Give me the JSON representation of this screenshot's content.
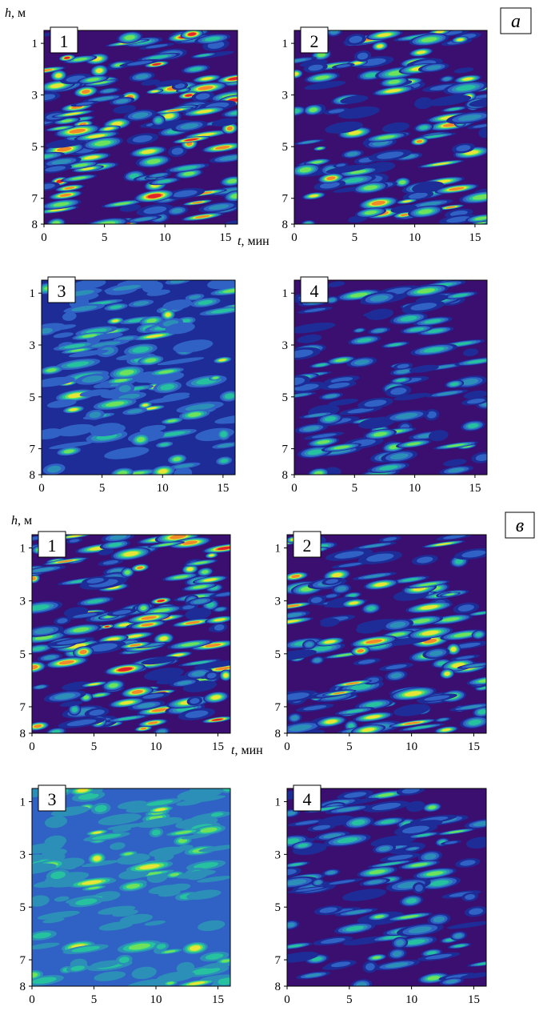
{
  "figure": {
    "y_label_h": "h",
    "y_label_unit": ", м",
    "x_label_t": "t",
    "x_label_unit": ", мин",
    "colors": {
      "levels": [
        "#3b0f6f",
        "#1d2c96",
        "#2f62c4",
        "#2c8fb8",
        "#26c2a0",
        "#6fe25c",
        "#e9e537",
        "#f08a2a",
        "#e2232a"
      ],
      "frame": "#000000",
      "badge_bg": "#ffffff"
    }
  },
  "chart_data": [
    {
      "group": "а",
      "panels": [
        {
          "id": "а-1",
          "label": "1",
          "type": "heatmap",
          "xlim": [
            0,
            16
          ],
          "ylim": [
            0.5,
            8
          ],
          "x_ticks": [
            0,
            5,
            10,
            15
          ],
          "y_ticks": [
            1,
            3,
            5,
            7,
            8
          ],
          "x_tick_labels": [
            "0",
            "5",
            "10",
            "15"
          ],
          "y_tick_labels": [
            "1",
            "3",
            "5",
            "7",
            "8"
          ],
          "intensity": 1.0,
          "background_level": 0,
          "seed": 11
        },
        {
          "id": "а-2",
          "label": "2",
          "type": "heatmap",
          "xlim": [
            0,
            16
          ],
          "ylim": [
            0.5,
            8
          ],
          "x_ticks": [
            0,
            5,
            10,
            15
          ],
          "y_ticks": [
            1,
            3,
            5,
            7,
            8
          ],
          "x_tick_labels": [
            "0",
            "5",
            "10",
            "15"
          ],
          "y_tick_labels": [
            "1",
            "3",
            "5",
            "7",
            "8"
          ],
          "intensity": 0.72,
          "background_level": 0,
          "seed": 23
        },
        {
          "id": "а-3",
          "label": "3",
          "type": "heatmap",
          "xlim": [
            0,
            16
          ],
          "ylim": [
            0.5,
            8
          ],
          "x_ticks": [
            0,
            5,
            10,
            15
          ],
          "y_ticks": [
            1,
            3,
            5,
            7,
            8
          ],
          "x_tick_labels": [
            "0",
            "5",
            "10",
            "15"
          ],
          "y_tick_labels": [
            "1",
            "3",
            "5",
            "7",
            "8"
          ],
          "intensity": 0.6,
          "background_level": 1,
          "seed": 37
        },
        {
          "id": "а-4",
          "label": "4",
          "type": "heatmap",
          "xlim": [
            0,
            16
          ],
          "ylim": [
            0.5,
            8
          ],
          "x_ticks": [
            0,
            5,
            10,
            15
          ],
          "y_ticks": [
            1,
            3,
            5,
            7,
            8
          ],
          "x_tick_labels": [
            "0",
            "5",
            "10",
            "15"
          ],
          "y_tick_labels": [
            "1",
            "3",
            "5",
            "7",
            "8"
          ],
          "intensity": 0.42,
          "background_level": 0,
          "seed": 41
        }
      ]
    },
    {
      "group": "в",
      "panels": [
        {
          "id": "в-1",
          "label": "1",
          "type": "heatmap",
          "xlim": [
            0,
            16
          ],
          "ylim": [
            0.5,
            8
          ],
          "x_ticks": [
            0,
            5,
            10,
            15
          ],
          "y_ticks": [
            1,
            3,
            5,
            7,
            8
          ],
          "x_tick_labels": [
            "0",
            "5",
            "10",
            "15"
          ],
          "y_tick_labels": [
            "1",
            "3",
            "5",
            "7",
            "8"
          ],
          "intensity": 1.0,
          "background_level": 0,
          "seed": 53
        },
        {
          "id": "в-2",
          "label": "2",
          "type": "heatmap",
          "xlim": [
            0,
            16
          ],
          "ylim": [
            0.5,
            8
          ],
          "x_ticks": [
            0,
            5,
            10,
            15
          ],
          "y_ticks": [
            1,
            3,
            5,
            7,
            8
          ],
          "x_tick_labels": [
            "0",
            "5",
            "10",
            "15"
          ],
          "y_tick_labels": [
            "1",
            "3",
            "5",
            "7",
            "8"
          ],
          "intensity": 0.75,
          "background_level": 0,
          "seed": 67
        },
        {
          "id": "в-3",
          "label": "3",
          "type": "heatmap",
          "xlim": [
            0,
            16
          ],
          "ylim": [
            0.5,
            8
          ],
          "x_ticks": [
            0,
            5,
            10,
            15
          ],
          "y_ticks": [
            1,
            3,
            5,
            7,
            8
          ],
          "x_tick_labels": [
            "0",
            "5",
            "10",
            "15"
          ],
          "y_tick_labels": [
            "1",
            "3",
            "5",
            "7",
            "8"
          ],
          "intensity": 0.65,
          "background_level": 2,
          "seed": 71
        },
        {
          "id": "в-4",
          "label": "4",
          "type": "heatmap",
          "xlim": [
            0,
            16
          ],
          "ylim": [
            0.5,
            8
          ],
          "x_ticks": [
            0,
            5,
            10,
            15
          ],
          "y_ticks": [
            1,
            3,
            5,
            7,
            8
          ],
          "x_tick_labels": [
            "0",
            "5",
            "10",
            "15"
          ],
          "y_tick_labels": [
            "1",
            "3",
            "5",
            "7",
            "8"
          ],
          "intensity": 0.45,
          "background_level": 0,
          "seed": 83
        }
      ]
    }
  ]
}
